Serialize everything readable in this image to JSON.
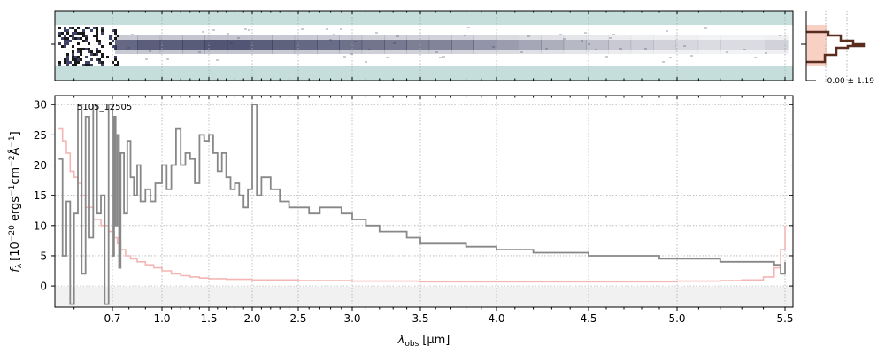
{
  "chart_data": [
    {
      "type": "heatmap",
      "panel": "2D spectrum",
      "x_scale": "custom-stretched wavelength axis (same as spectrum panel)",
      "colormap": [
        "#c5dedc",
        "#ffffff",
        "#2a2e52",
        "#000000"
      ],
      "grid": true,
      "trace_profile": [
        0.85,
        0.9,
        0.9,
        0.92,
        0.95,
        0.95,
        0.9,
        0.88,
        0.85,
        0.82,
        0.8,
        0.78,
        0.75,
        0.72,
        0.7,
        0.65,
        0.6,
        0.55,
        0.5,
        0.45,
        0.4,
        0.35,
        0.3,
        0.28,
        0.25,
        0.22,
        0.2,
        0.2,
        0.2,
        0.25
      ]
    },
    {
      "type": "line",
      "panel": "cross-dispersion profile",
      "annotation": "-0.00 ± 1.19",
      "fill_color": "#f8d0c4",
      "line_color": "#5a2d1e"
    },
    {
      "type": "line",
      "panel": "1D spectrum",
      "object_label": "5105_12505",
      "xlabel_symbol": "λ",
      "xlabel_sub": "obs",
      "xlabel_unit": "[μm]",
      "ylabel": "f_λ [10^-20 ergs^-1 cm^-2 Å^-1]",
      "ylabel_prefix": "f",
      "ylabel_sub": "λ",
      "ylabel_main": "[10",
      "ylabel_e1": "−20",
      "ylabel_m2": " ergs",
      "ylabel_e2": "−1",
      "ylabel_m3": "cm",
      "ylabel_e3": "−2",
      "ylabel_m4": "Å",
      "ylabel_e4": "−1",
      "ylabel_end": "]",
      "x_ticks": [
        {
          "v": 0.7,
          "label": "0.7"
        },
        {
          "v": 1.0,
          "label": "1.0"
        },
        {
          "v": 1.5,
          "label": "1.5"
        },
        {
          "v": 2.0,
          "label": "2.0"
        },
        {
          "v": 2.5,
          "label": "2.5"
        },
        {
          "v": 3.0,
          "label": "3.0"
        },
        {
          "v": 3.5,
          "label": "3.5"
        },
        {
          "v": 4.0,
          "label": "4.0"
        },
        {
          "v": 4.5,
          "label": "4.5"
        },
        {
          "v": 5.0,
          "label": "5.0"
        },
        {
          "v": 5.5,
          "label": "5.5"
        }
      ],
      "x_minor": [
        0.6,
        0.8,
        0.9,
        1.1,
        1.2,
        1.3,
        1.4,
        1.6,
        1.7,
        1.8,
        1.9,
        2.1,
        2.2,
        2.3,
        2.4,
        2.6,
        2.7,
        2.8,
        2.9,
        3.1,
        3.2,
        3.3,
        3.4,
        3.6,
        3.7,
        3.8,
        3.9,
        4.1,
        4.2,
        4.3,
        4.4,
        4.6,
        4.7,
        4.8,
        4.9,
        5.1,
        5.2,
        5.3,
        5.4
      ],
      "y_ticks": [
        0,
        5,
        10,
        15,
        20,
        25,
        30
      ],
      "xlim": [
        0.55,
        5.52
      ],
      "ylim": [
        -3.5,
        31.5
      ],
      "grid": true,
      "series": [
        {
          "color": "#888888",
          "x": [
            0.56,
            0.57,
            0.58,
            0.59,
            0.6,
            0.61,
            0.62,
            0.63,
            0.64,
            0.65,
            0.66,
            0.67,
            0.68,
            0.69,
            0.7,
            0.71,
            0.72,
            0.73,
            0.74,
            0.75,
            0.77,
            0.79,
            0.81,
            0.83,
            0.85,
            0.87,
            0.9,
            0.93,
            0.96,
            1.0,
            1.05,
            1.1,
            1.15,
            1.2,
            1.25,
            1.3,
            1.35,
            1.4,
            1.45,
            1.5,
            1.55,
            1.6,
            1.65,
            1.7,
            1.75,
            1.8,
            1.85,
            1.9,
            1.95,
            2.0,
            2.05,
            2.1,
            2.2,
            2.3,
            2.4,
            2.5,
            2.6,
            2.7,
            2.8,
            2.9,
            3.0,
            3.1,
            3.2,
            3.3,
            3.4,
            3.5,
            3.6,
            3.7,
            3.8,
            3.9,
            4.0,
            4.1,
            4.2,
            4.3,
            4.4,
            4.5,
            4.6,
            4.7,
            4.8,
            4.9,
            5.0,
            5.1,
            5.2,
            5.3,
            5.4,
            5.45,
            5.48,
            5.5
          ],
          "y": [
            21,
            5,
            14,
            -3,
            12,
            30,
            2,
            28,
            8,
            30,
            12,
            15,
            -3,
            30,
            5,
            28,
            10,
            25,
            3,
            22,
            12,
            24,
            18,
            15,
            20,
            14,
            16,
            14,
            17,
            20,
            16,
            20,
            26,
            20,
            22,
            21,
            17,
            25,
            24,
            25,
            22,
            19,
            22,
            18,
            16,
            17,
            15,
            13,
            16,
            30,
            15,
            18,
            16,
            14,
            13,
            13,
            12,
            13,
            13,
            12,
            11,
            10,
            9,
            9,
            8,
            7,
            7,
            7,
            6.5,
            6.5,
            6,
            6,
            5.5,
            5.5,
            5.5,
            5,
            5,
            5,
            5,
            4.5,
            4.5,
            4.5,
            4,
            4,
            4,
            3.5,
            2,
            4
          ]
        },
        {
          "color": "#f4b6b4",
          "x": [
            0.56,
            0.57,
            0.58,
            0.59,
            0.6,
            0.61,
            0.62,
            0.63,
            0.64,
            0.65,
            0.67,
            0.69,
            0.71,
            0.73,
            0.75,
            0.78,
            0.81,
            0.85,
            0.9,
            0.95,
            1.0,
            1.1,
            1.2,
            1.3,
            1.4,
            1.5,
            1.7,
            2.0,
            2.5,
            3.0,
            3.5,
            4.0,
            4.5,
            5.0,
            5.2,
            5.3,
            5.4,
            5.45,
            5.48,
            5.5
          ],
          "y": [
            26,
            24,
            22,
            19,
            18,
            17,
            15,
            13,
            13,
            11,
            10,
            9,
            8,
            7,
            6,
            5,
            4.5,
            4,
            3.5,
            3,
            2.5,
            2,
            1.7,
            1.5,
            1.3,
            1.2,
            1.1,
            1.0,
            0.9,
            0.8,
            0.7,
            0.7,
            0.7,
            0.8,
            0.9,
            1.0,
            1.5,
            3,
            6,
            10
          ]
        }
      ]
    }
  ]
}
